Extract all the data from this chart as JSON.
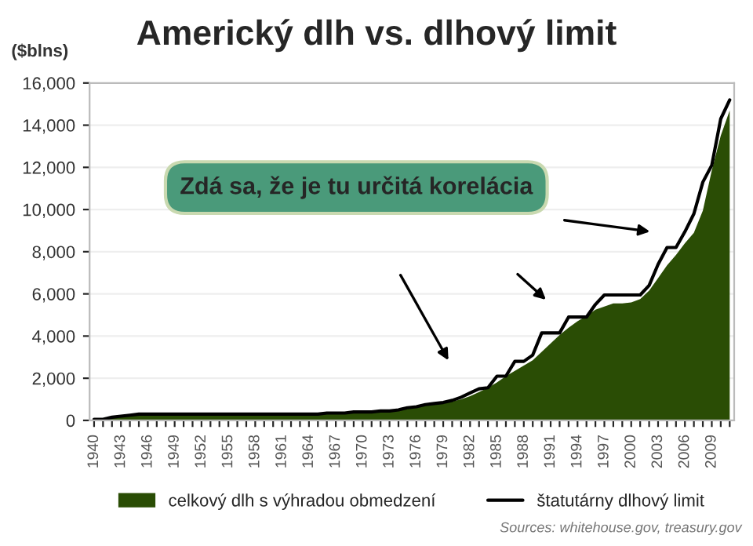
{
  "chart_data": {
    "type": "area",
    "title": "Americký dlh vs. dlhový limit",
    "ylabel": "($blns)",
    "categories": [
      "1940",
      null,
      null,
      "1943",
      null,
      null,
      "1946",
      null,
      null,
      "1949",
      null,
      null,
      "1952",
      null,
      null,
      "1955",
      null,
      null,
      "1958",
      null,
      null,
      "1961",
      null,
      null,
      "1964",
      null,
      null,
      "1967",
      null,
      null,
      "1970",
      null,
      null,
      "1973",
      null,
      null,
      "1976",
      null,
      null,
      "1979",
      null,
      null,
      "1982",
      null,
      null,
      "1985",
      null,
      null,
      "1988",
      null,
      null,
      "1991",
      null,
      null,
      "1994",
      null,
      null,
      "1997",
      null,
      null,
      "2000",
      null,
      null,
      "2003",
      null,
      null,
      "2006",
      null,
      null,
      "2009",
      null,
      null
    ],
    "series": [
      {
        "name": "celkový dlh s výhradou obmedzení",
        "color": "#2a4d05",
        "values": [
          50,
          50,
          100,
          200,
          250,
          250,
          250,
          250,
          250,
          250,
          250,
          250,
          250,
          250,
          250,
          250,
          250,
          250,
          300,
          300,
          300,
          300,
          300,
          300,
          300,
          300,
          300,
          350,
          350,
          350,
          400,
          400,
          450,
          450,
          500,
          550,
          650,
          700,
          800,
          850,
          900,
          1000,
          1150,
          1350,
          1550,
          1800,
          2100,
          2350,
          2600,
          2850,
          3250,
          3650,
          4050,
          4400,
          4700,
          4950,
          5250,
          5400,
          5550,
          5550,
          5600,
          5750,
          6150,
          6750,
          7350,
          7850,
          8400,
          8900,
          9950,
          11850,
          13500,
          14700
        ]
      },
      {
        "name": "štatutárny dlhový limit",
        "type": "line",
        "color": "#000000",
        "values": [
          50,
          50,
          150,
          200,
          250,
          300,
          300,
          300,
          300,
          300,
          300,
          300,
          300,
          300,
          300,
          300,
          300,
          300,
          300,
          300,
          300,
          300,
          300,
          300,
          300,
          300,
          350,
          350,
          350,
          400,
          400,
          400,
          450,
          450,
          500,
          600,
          650,
          750,
          800,
          850,
          950,
          1100,
          1300,
          1500,
          1550,
          2100,
          2100,
          2800,
          2800,
          3100,
          4150,
          4150,
          4150,
          4900,
          4900,
          4900,
          5500,
          5950,
          5950,
          5950,
          5950,
          5950,
          6400,
          7400,
          8200,
          8200,
          8950,
          9800,
          11300,
          12100,
          14300,
          15200
        ]
      }
    ],
    "ylim": [
      0,
      16000
    ],
    "yticks": [
      0,
      {
        "value": 2000,
        "label": "2,000"
      },
      {
        "value": 4000,
        "label": "4,000"
      },
      {
        "value": 6000,
        "label": "6,000"
      },
      {
        "value": 8000,
        "label": "8,000"
      },
      {
        "value": 10000,
        "label": "10,000"
      },
      {
        "value": 12000,
        "label": "12,000"
      },
      {
        "value": 14000,
        "label": "14,000"
      },
      {
        "value": 16000,
        "label": "16,000"
      }
    ],
    "grid": "y",
    "legend": "bottom",
    "annotations": [
      "Zdá sa, že je tu určitá korelácia",
      "Sources: whitehouse.gov, treasury.gov"
    ]
  }
}
